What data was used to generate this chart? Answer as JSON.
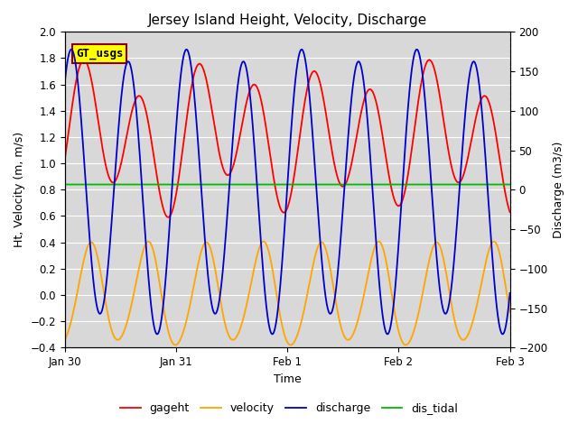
{
  "title": "Jersey Island Height, Velocity, Discharge",
  "xlabel": "Time",
  "ylabel_left": "Ht, Velocity (m, m/s)",
  "ylabel_right": "Discharge (m3/s)",
  "ylim_left": [
    -0.4,
    2.0
  ],
  "ylim_right": [
    -200,
    200
  ],
  "tidal_period_hours": 12.42,
  "gageht_color": "#ff0000",
  "velocity_color": "#ffa500",
  "discharge_color": "#0000cd",
  "dis_tidal_color": "#00bb00",
  "dis_tidal_value": 0.84,
  "background_color": "#d8d8d8",
  "figure_color": "#ffffff",
  "gt_usgs_label": "GT_usgs",
  "gt_usgs_bg": "#ffff00",
  "gt_usgs_border": "#8b0000",
  "legend_labels": [
    "gageht",
    "velocity",
    "discharge",
    "dis_tidal"
  ],
  "title_fontsize": 11,
  "axis_label_fontsize": 9,
  "tick_fontsize": 8.5,
  "legend_fontsize": 9,
  "n_points": 2000,
  "line_width": 1.3
}
